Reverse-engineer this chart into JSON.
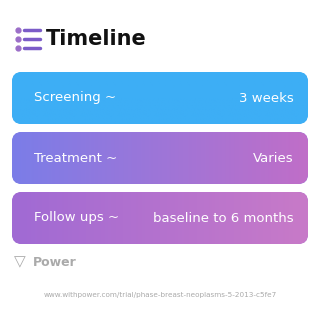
{
  "title": "Timeline",
  "background_color": "#ffffff",
  "rows": [
    {
      "label": "Screening ~",
      "value": "3 weeks",
      "color_left": "#3daef5",
      "color_right": "#3daef5"
    },
    {
      "label": "Treatment ~",
      "value": "Varies",
      "color_left": "#7b7de8",
      "color_right": "#c06ec8"
    },
    {
      "label": "Follow ups ~",
      "value": "baseline to 6 months",
      "color_left": "#a06ad4",
      "color_right": "#c87ac8"
    }
  ],
  "footer_text": "Power",
  "footer_url": "www.withpower.com/trial/phase-breast-neoplasms-5-2013-c5fe7",
  "title_fontsize": 15,
  "row_fontsize": 9.5,
  "icon_color": "#7b5cc8",
  "icon_color2": "#9b6ec8",
  "footer_color": "#aaaaaa"
}
